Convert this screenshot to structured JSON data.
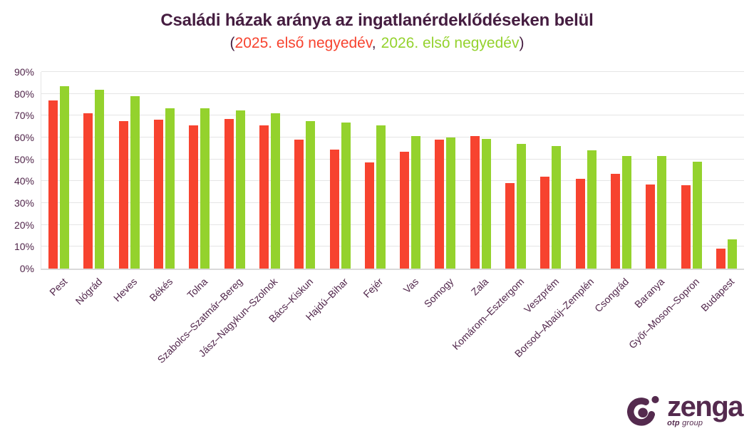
{
  "title": "Családi házak aránya az ingatlanérdeklődéseken belül",
  "subtitle": {
    "open_paren": "(",
    "series1_label": "2025. első negyedév",
    "separator": ",",
    "series2_label": "2026. első negyedév",
    "close_paren": ")"
  },
  "chart_data": {
    "type": "bar",
    "title": "Családi házak aránya az ingatlanérdeklődéseken belül",
    "subtitle_note": "(2025. első negyedév, 2026. első negyedév)",
    "categories": [
      "Pest",
      "Nógrád",
      "Heves",
      "Békés",
      "Tolna",
      "Szabolcs–Szatmár–Bereg",
      "Jász–Nagykun–Szolnok",
      "Bács–Kiskun",
      "Hajdú–Bihar",
      "Fejér",
      "Vas",
      "Somogy",
      "Zala",
      "Komárom–Esztergom",
      "Veszprém",
      "Borsod–Abaúj–Zemplén",
      "Csongrád",
      "Baranya",
      "Győr–Moson–Sopron",
      "Budapest"
    ],
    "series": [
      {
        "name": "2025. első negyedév",
        "color": "#f7432f",
        "values": [
          77,
          71,
          67.5,
          68,
          65.5,
          68.5,
          65.5,
          59,
          54.5,
          48.5,
          53.5,
          59,
          60.5,
          39,
          42,
          41,
          43.5,
          38.5,
          38,
          9
        ]
      },
      {
        "name": "2026. első negyedév",
        "color": "#94d22d",
        "values": [
          83.5,
          82,
          79,
          73.5,
          73.5,
          72.5,
          71,
          67.5,
          67,
          65.5,
          60.5,
          60,
          59.5,
          57,
          56,
          54,
          51.5,
          51.5,
          49,
          13.5
        ]
      }
    ],
    "y_ticks": [
      "0%",
      "10%",
      "20%",
      "30%",
      "40%",
      "50%",
      "60%",
      "70%",
      "80%",
      "90%"
    ],
    "ylim": [
      0,
      90
    ],
    "ylabel": "",
    "xlabel": "",
    "grid": true,
    "legend_position": "subtitle"
  },
  "logo": {
    "brand": "zenga",
    "subbrand_bold": "otp",
    "subbrand_rest": " group"
  },
  "colors": {
    "background": "#ffffff",
    "title": "#451d40",
    "axis_label": "#51264b",
    "series1": "#f7432f",
    "series2": "#94d22d",
    "gridline": "#e5e5e5",
    "logo": "#542a4e"
  }
}
